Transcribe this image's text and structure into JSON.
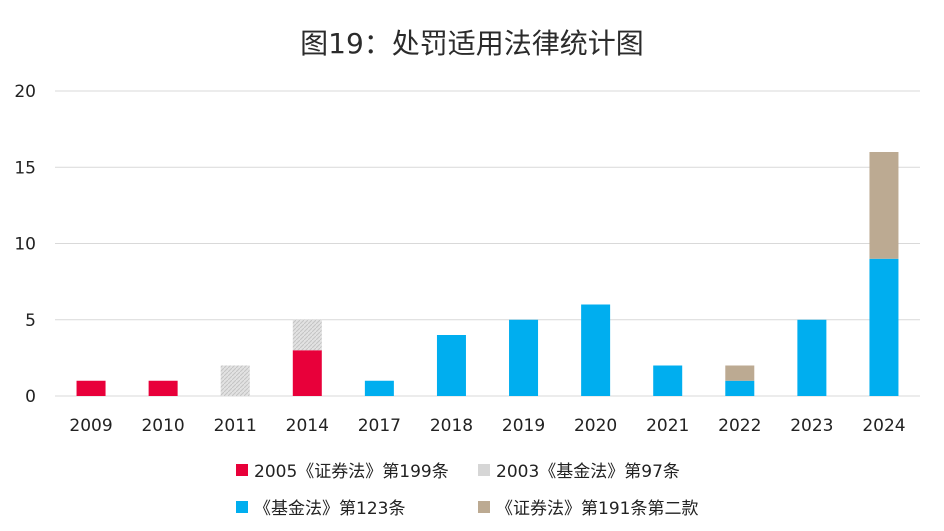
{
  "chart_data": {
    "type": "bar",
    "stacked": true,
    "title": "图19：处罚适用法律统计图",
    "xlabel": "",
    "ylabel": "",
    "ylim": [
      0,
      20
    ],
    "yticks": [
      0,
      5,
      10,
      15,
      20
    ],
    "grid": true,
    "legend_position": "bottom",
    "categories": [
      "2009",
      "2010",
      "2011",
      "2014",
      "2017",
      "2018",
      "2019",
      "2020",
      "2021",
      "2022",
      "2023",
      "2024"
    ],
    "series": [
      {
        "name": "2005《证券法》第199条",
        "color": "#E8003A",
        "pattern": false,
        "values": [
          1,
          1,
          0,
          3,
          0,
          0,
          0,
          0,
          0,
          0,
          0,
          0
        ]
      },
      {
        "name": "2003《基金法》第97条",
        "color": "#D6D6D6",
        "pattern": true,
        "values": [
          0,
          0,
          2,
          2,
          0,
          0,
          0,
          0,
          0,
          0,
          0,
          0
        ]
      },
      {
        "name": "《基金法》第123条",
        "color": "#00AEEF",
        "pattern": false,
        "values": [
          0,
          0,
          0,
          0,
          1,
          4,
          5,
          6,
          2,
          1,
          5,
          9
        ]
      },
      {
        "name": "《证券法》第191条第二款",
        "color": "#BCAA92",
        "pattern": false,
        "values": [
          0,
          0,
          0,
          0,
          0,
          0,
          0,
          0,
          0,
          1,
          0,
          7
        ]
      }
    ]
  }
}
